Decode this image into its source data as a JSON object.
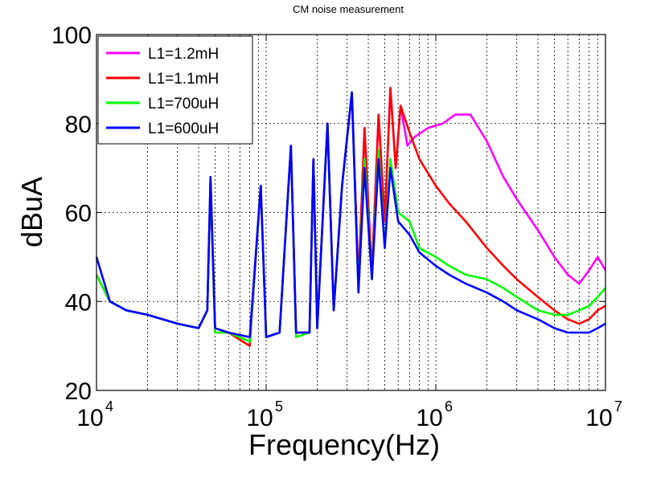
{
  "chart_data": {
    "type": "line",
    "title": "CM noise measurement",
    "xlabel": "Frequency(Hz)",
    "ylabel": "dBuA",
    "xscale": "log",
    "xlim": [
      10000,
      10000000
    ],
    "ylim": [
      20,
      100
    ],
    "xticks": [
      {
        "value": 10000,
        "base": "10",
        "exp": "4"
      },
      {
        "value": 100000,
        "base": "10",
        "exp": "5"
      },
      {
        "value": 1000000,
        "base": "10",
        "exp": "6"
      },
      {
        "value": 10000000,
        "base": "10",
        "exp": "7"
      }
    ],
    "yticks": [
      20,
      40,
      60,
      80,
      100
    ],
    "grid": true,
    "legend_position": "top-left",
    "series": [
      {
        "name": "L1=1.2mH",
        "color": "#ff00ff",
        "points": [
          [
            10000,
            46
          ],
          [
            12000,
            40
          ],
          [
            15000,
            38
          ],
          [
            20000,
            37
          ],
          [
            30000,
            35
          ],
          [
            40000,
            34
          ],
          [
            45000,
            38
          ],
          [
            47000,
            67
          ],
          [
            50000,
            34
          ],
          [
            60000,
            33
          ],
          [
            80000,
            31
          ],
          [
            93000,
            66
          ],
          [
            100000,
            32
          ],
          [
            120000,
            33
          ],
          [
            140000,
            75
          ],
          [
            150000,
            33
          ],
          [
            180000,
            33
          ],
          [
            190000,
            72
          ],
          [
            200000,
            34
          ],
          [
            230000,
            80
          ],
          [
            250000,
            38
          ],
          [
            280000,
            66
          ],
          [
            320000,
            87
          ],
          [
            350000,
            44
          ],
          [
            380000,
            79
          ],
          [
            420000,
            46
          ],
          [
            460000,
            82
          ],
          [
            500000,
            58
          ],
          [
            540000,
            88
          ],
          [
            580000,
            70
          ],
          [
            620000,
            84
          ],
          [
            680000,
            75
          ],
          [
            750000,
            77
          ],
          [
            900000,
            79
          ],
          [
            1100000,
            80
          ],
          [
            1300000,
            82
          ],
          [
            1600000,
            82
          ],
          [
            2000000,
            76
          ],
          [
            2500000,
            68
          ],
          [
            3000000,
            63
          ],
          [
            4000000,
            56
          ],
          [
            5000000,
            50
          ],
          [
            6000000,
            46
          ],
          [
            7000000,
            44
          ],
          [
            8000000,
            47
          ],
          [
            9000000,
            50
          ],
          [
            10000000,
            47
          ]
        ]
      },
      {
        "name": "L1=1.1mH",
        "color": "#ff0000",
        "points": [
          [
            10000,
            46
          ],
          [
            12000,
            40
          ],
          [
            15000,
            38
          ],
          [
            20000,
            37
          ],
          [
            30000,
            35
          ],
          [
            40000,
            34
          ],
          [
            45000,
            38
          ],
          [
            47000,
            67
          ],
          [
            50000,
            33
          ],
          [
            60000,
            33
          ],
          [
            80000,
            30
          ],
          [
            93000,
            66
          ],
          [
            100000,
            32
          ],
          [
            120000,
            33
          ],
          [
            140000,
            75
          ],
          [
            150000,
            33
          ],
          [
            180000,
            33
          ],
          [
            190000,
            72
          ],
          [
            200000,
            34
          ],
          [
            230000,
            80
          ],
          [
            250000,
            38
          ],
          [
            280000,
            66
          ],
          [
            320000,
            87
          ],
          [
            350000,
            44
          ],
          [
            380000,
            79
          ],
          [
            420000,
            46
          ],
          [
            460000,
            82
          ],
          [
            500000,
            58
          ],
          [
            540000,
            88
          ],
          [
            580000,
            70
          ],
          [
            620000,
            84
          ],
          [
            700000,
            78
          ],
          [
            800000,
            72
          ],
          [
            1000000,
            66
          ],
          [
            1200000,
            62
          ],
          [
            1500000,
            58
          ],
          [
            2000000,
            52
          ],
          [
            2500000,
            48
          ],
          [
            3000000,
            45
          ],
          [
            4000000,
            41
          ],
          [
            5000000,
            38
          ],
          [
            6000000,
            36
          ],
          [
            7000000,
            35
          ],
          [
            8000000,
            36
          ],
          [
            9000000,
            38
          ],
          [
            10000000,
            39
          ]
        ]
      },
      {
        "name": "L1=700uH",
        "color": "#00ff00",
        "points": [
          [
            10000,
            46
          ],
          [
            12000,
            40
          ],
          [
            15000,
            38
          ],
          [
            20000,
            37
          ],
          [
            30000,
            35
          ],
          [
            40000,
            34
          ],
          [
            45000,
            38
          ],
          [
            47000,
            67
          ],
          [
            50000,
            33
          ],
          [
            60000,
            33
          ],
          [
            80000,
            31
          ],
          [
            93000,
            66
          ],
          [
            100000,
            32
          ],
          [
            120000,
            33
          ],
          [
            140000,
            75
          ],
          [
            150000,
            32
          ],
          [
            180000,
            33
          ],
          [
            190000,
            72
          ],
          [
            200000,
            34
          ],
          [
            230000,
            80
          ],
          [
            250000,
            38
          ],
          [
            280000,
            66
          ],
          [
            320000,
            87
          ],
          [
            350000,
            42
          ],
          [
            380000,
            72
          ],
          [
            420000,
            45
          ],
          [
            460000,
            74
          ],
          [
            500000,
            52
          ],
          [
            540000,
            72
          ],
          [
            600000,
            60
          ],
          [
            700000,
            58
          ],
          [
            800000,
            52
          ],
          [
            1000000,
            50
          ],
          [
            1200000,
            48
          ],
          [
            1500000,
            46
          ],
          [
            2000000,
            45
          ],
          [
            2500000,
            43
          ],
          [
            3000000,
            41
          ],
          [
            4000000,
            38
          ],
          [
            5000000,
            37
          ],
          [
            6000000,
            37
          ],
          [
            7000000,
            38
          ],
          [
            8000000,
            39
          ],
          [
            9000000,
            41
          ],
          [
            10000000,
            43
          ]
        ]
      },
      {
        "name": "L1=600uH",
        "color": "#0000ff",
        "points": [
          [
            10000,
            50
          ],
          [
            12000,
            40
          ],
          [
            15000,
            38
          ],
          [
            20000,
            37
          ],
          [
            30000,
            35
          ],
          [
            40000,
            34
          ],
          [
            45000,
            38
          ],
          [
            47000,
            68
          ],
          [
            50000,
            34
          ],
          [
            60000,
            33
          ],
          [
            80000,
            32
          ],
          [
            93000,
            66
          ],
          [
            100000,
            32
          ],
          [
            120000,
            33
          ],
          [
            140000,
            75
          ],
          [
            150000,
            33
          ],
          [
            180000,
            33
          ],
          [
            190000,
            72
          ],
          [
            200000,
            34
          ],
          [
            230000,
            80
          ],
          [
            250000,
            38
          ],
          [
            280000,
            66
          ],
          [
            320000,
            87
          ],
          [
            350000,
            42
          ],
          [
            380000,
            70
          ],
          [
            420000,
            45
          ],
          [
            460000,
            72
          ],
          [
            500000,
            52
          ],
          [
            540000,
            70
          ],
          [
            600000,
            58
          ],
          [
            700000,
            55
          ],
          [
            800000,
            51
          ],
          [
            1000000,
            48
          ],
          [
            1200000,
            46
          ],
          [
            1500000,
            44
          ],
          [
            2000000,
            42
          ],
          [
            2500000,
            40
          ],
          [
            3000000,
            38
          ],
          [
            4000000,
            36
          ],
          [
            5000000,
            34
          ],
          [
            6000000,
            33
          ],
          [
            7000000,
            33
          ],
          [
            8000000,
            33
          ],
          [
            9000000,
            34
          ],
          [
            10000000,
            35
          ]
        ]
      }
    ]
  }
}
